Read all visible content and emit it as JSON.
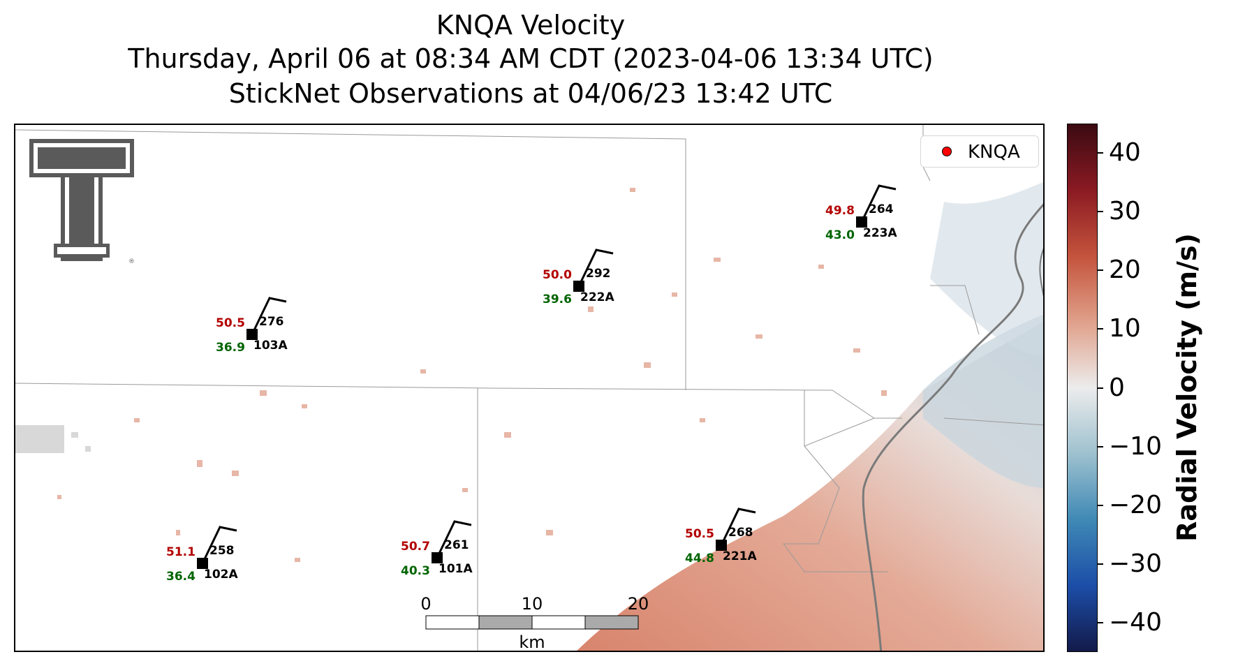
{
  "title": {
    "line1": "KNQA Velocity",
    "line2": "Thursday, April 06 at 08:34 AM CDT (2023-04-06 13:34 UTC)",
    "line3": "StickNet Observations at 04/06/23 13:42 UTC"
  },
  "legend": {
    "label": "KNQA",
    "marker_color": "#ff0000"
  },
  "colorbar": {
    "label": "Radial Velocity (m/s)",
    "range": [
      -45,
      45
    ],
    "ticks": [
      "40",
      "30",
      "20",
      "10",
      "0",
      "−10",
      "−20",
      "−30",
      "−40"
    ],
    "colors": [
      "#3b0a12",
      "#8b1a23",
      "#c4533c",
      "#e0a08a",
      "#ececec",
      "#9ec1cf",
      "#3f89b5",
      "#1c4ea8",
      "#131a4a"
    ]
  },
  "scale_bar": {
    "labels": [
      "0",
      "10",
      "20"
    ],
    "unit": "km"
  },
  "logo": {
    "name": "Texas Tech double-T"
  },
  "stations": [
    {
      "id": "103A",
      "temp": "50.5",
      "dew": "36.9",
      "dir": "276"
    },
    {
      "id": "222A",
      "temp": "50.0",
      "dew": "39.6",
      "dir": "292"
    },
    {
      "id": "223A",
      "temp": "49.8",
      "dew": "43.0",
      "dir": "264"
    },
    {
      "id": "102A",
      "temp": "51.1",
      "dew": "36.4",
      "dir": "258"
    },
    {
      "id": "101A",
      "temp": "50.7",
      "dew": "40.3",
      "dir": "261"
    },
    {
      "id": "221A",
      "temp": "50.5",
      "dew": "44.8",
      "dir": "268"
    }
  ],
  "colors": {
    "temp": "#b30000",
    "dew": "#006400",
    "positive_velocity": "#d98f78",
    "negative_velocity": "#b9cfd9"
  }
}
